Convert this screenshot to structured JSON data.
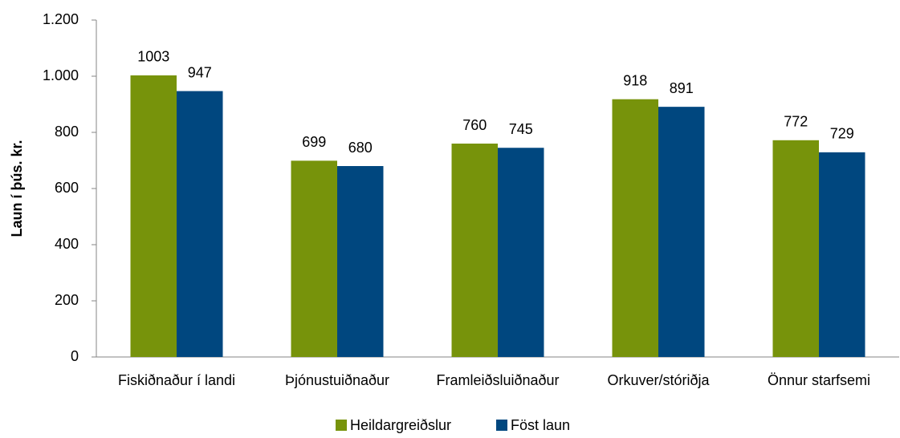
{
  "chart_data": {
    "type": "bar",
    "ylabel": "Laun í þús. kr.",
    "categories": [
      "Fiskiðnaður í landi",
      "Þjónustuiðnaður",
      "Framleiðsluiðnaður",
      "Orkuver/stóriðja",
      "Önnur starfsemi"
    ],
    "series": [
      {
        "name": "Heildargreiðslur",
        "color": "#77930b",
        "values": [
          1003,
          699,
          760,
          918,
          772
        ]
      },
      {
        "name": "Föst laun",
        "color": "#00477f",
        "values": [
          947,
          680,
          745,
          891,
          729
        ]
      }
    ],
    "ylim": [
      0,
      1200
    ],
    "yticks": [
      0,
      200,
      400,
      600,
      800,
      {
        "value": 1000,
        "label": "1.000"
      },
      {
        "value": 1200,
        "label": "1.200"
      }
    ],
    "grid": false,
    "legend": "bottom"
  }
}
